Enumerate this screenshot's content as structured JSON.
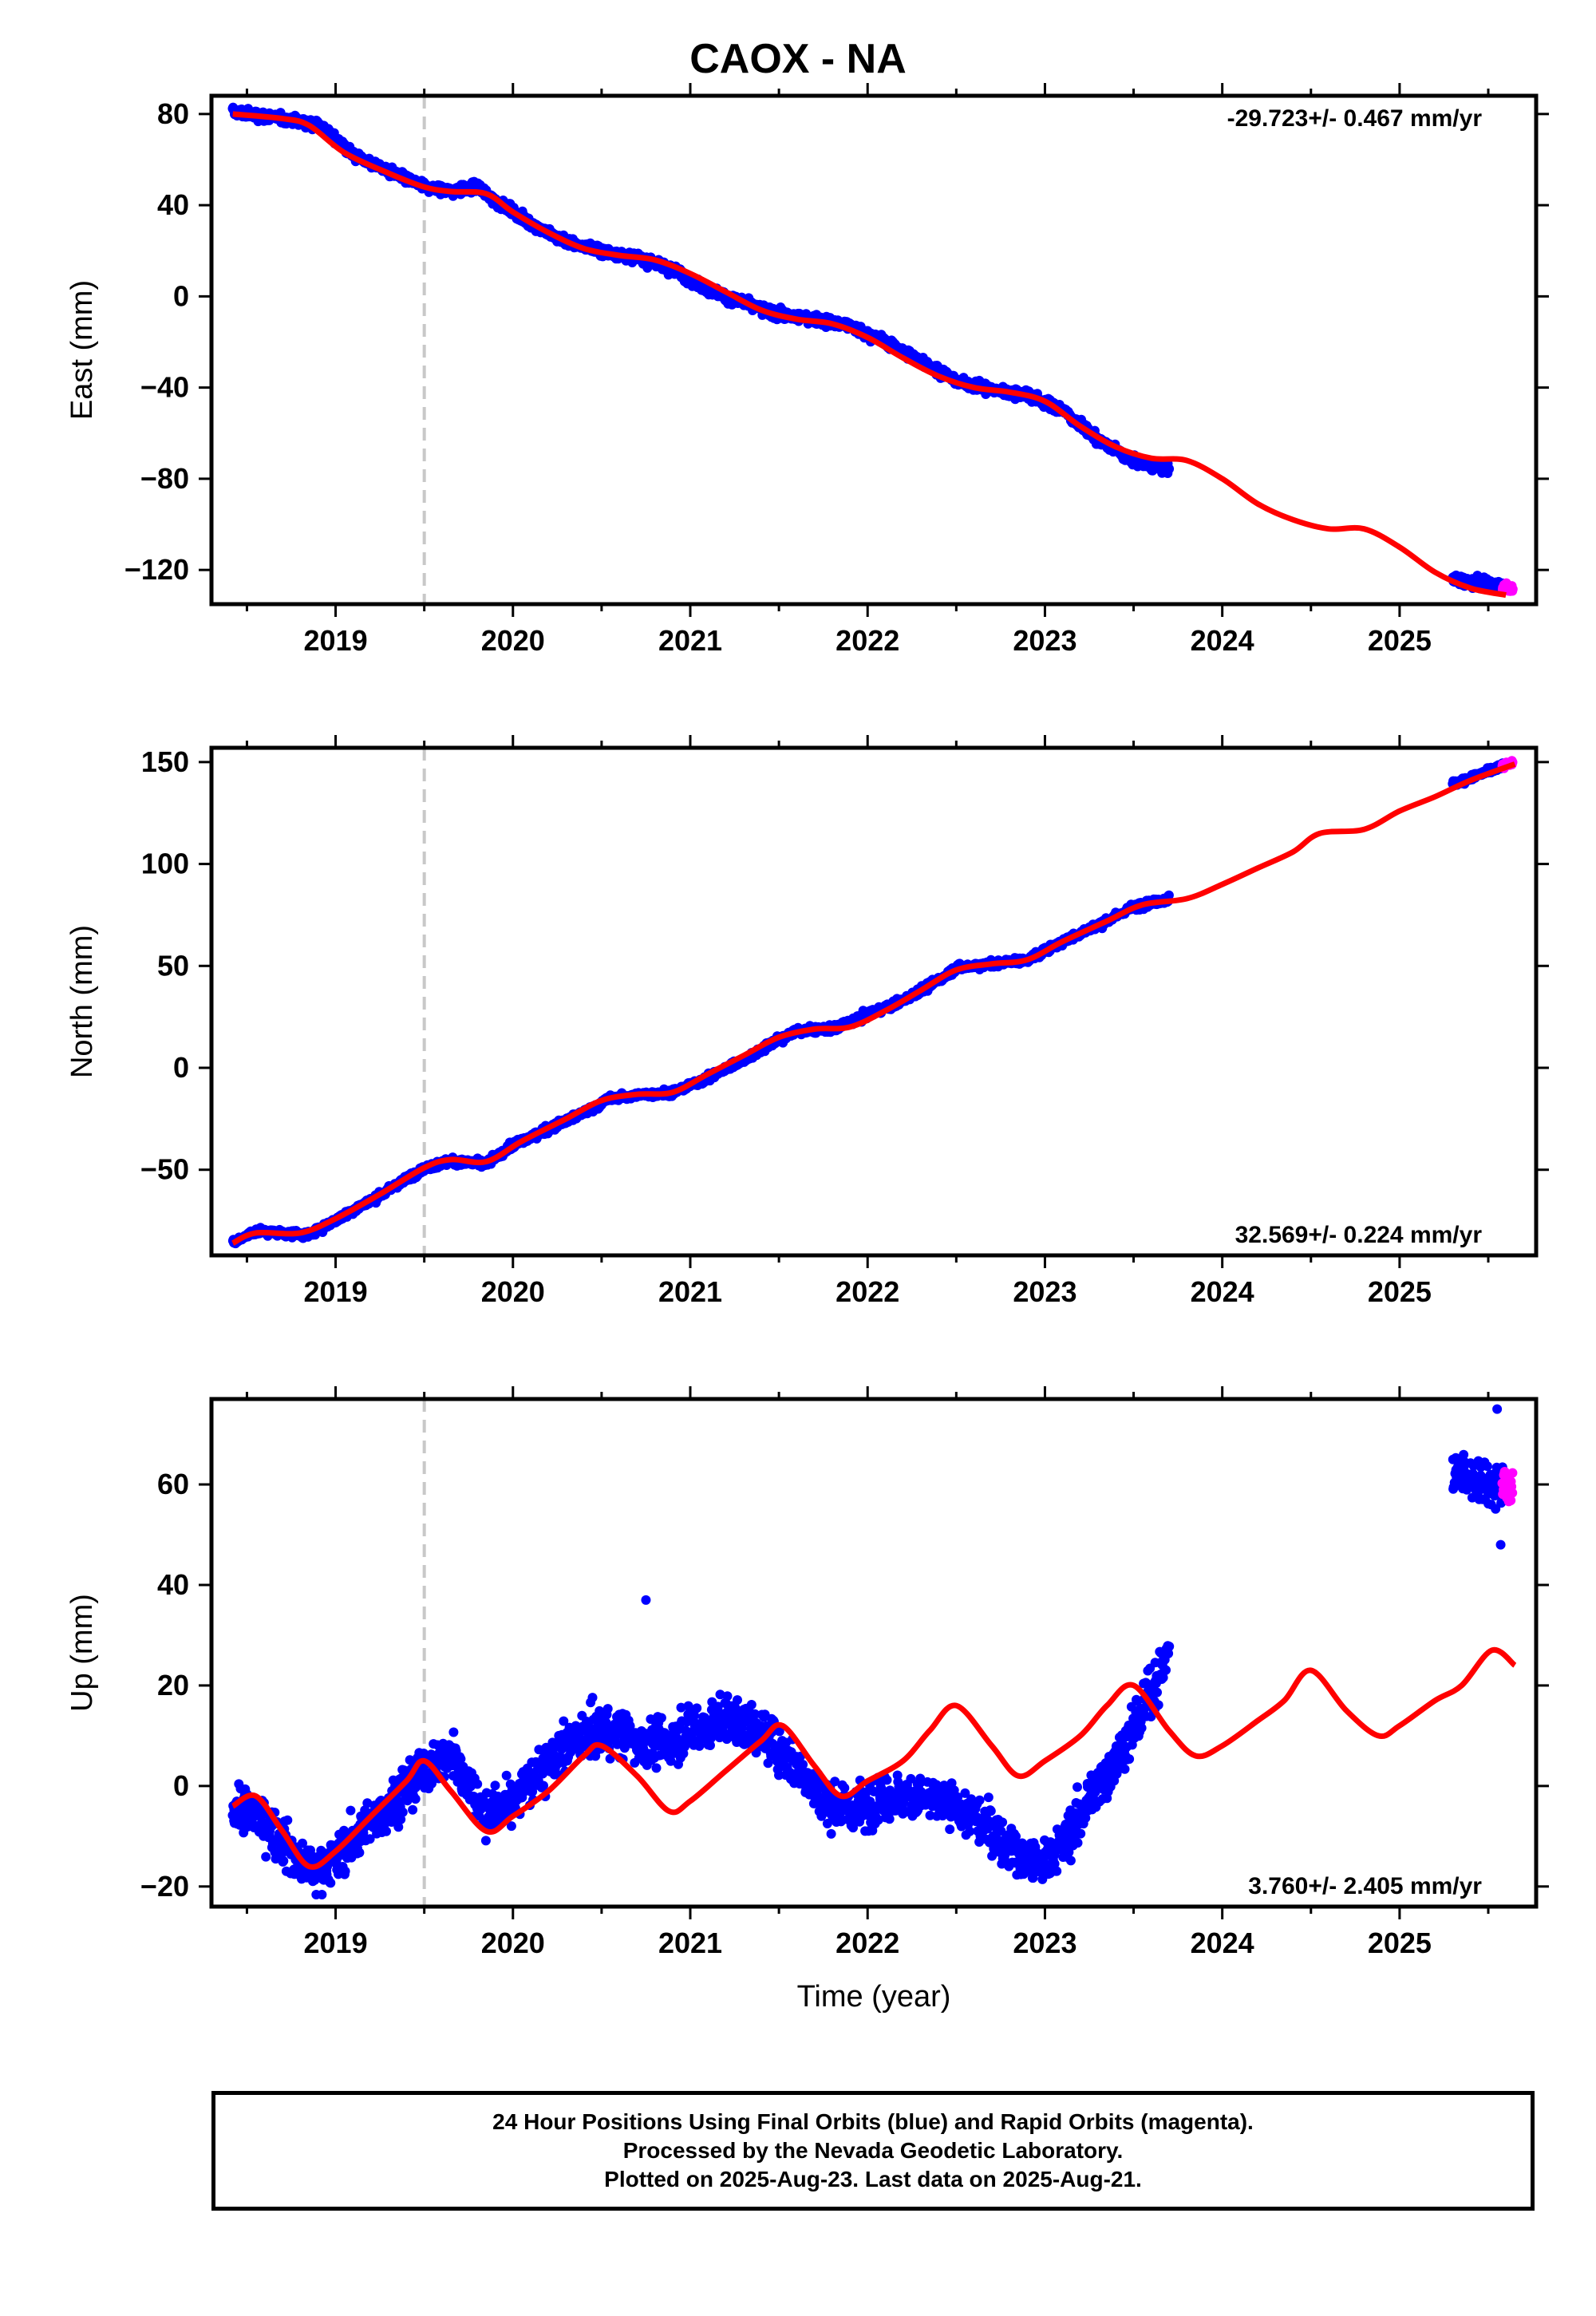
{
  "title": "CAOX - NA",
  "footer": {
    "line1": "24 Hour Positions Using Final Orbits (blue) and Rapid Orbits (magenta).",
    "line2": "Processed by the Nevada Geodetic Laboratory.",
    "line3": "Plotted on 2025-Aug-23. Last data on 2025-Aug-21."
  },
  "colors": {
    "final": "#0000ff",
    "rapid": "#ff00ff",
    "model": "#ff0000",
    "equipment_change": "#c8c8c8"
  },
  "chart_data": [
    {
      "type": "scatter",
      "ylabel": "East (mm)",
      "xlabel": "",
      "xlim": [
        2018.3,
        2025.77
      ],
      "ylim": [
        -135,
        88
      ],
      "yticks": [
        80,
        40,
        0,
        -40,
        -80,
        -120
      ],
      "xticks": [
        2019,
        2020,
        2021,
        2022,
        2023,
        2024,
        2025
      ],
      "rate_text": "-29.723+/- 0.467 mm/yr",
      "rate_position": "top-right",
      "equipment_change_x": 2019.5,
      "series": [
        {
          "kind": "final_points",
          "noise": 1.5,
          "segments": [
            {
              "start": 2018.42,
              "end": 2023.7
            },
            {
              "start": 2025.3,
              "end": 2025.58
            }
          ],
          "trend": [
            [
              2018.42,
              81
            ],
            [
              2018.7,
              78
            ],
            [
              2018.9,
              76
            ],
            [
              2019.1,
              62
            ],
            [
              2019.3,
              55
            ],
            [
              2019.5,
              48
            ],
            [
              2019.65,
              46
            ],
            [
              2019.8,
              48
            ],
            [
              2019.9,
              42
            ],
            [
              2020.1,
              32
            ],
            [
              2020.3,
              24
            ],
            [
              2020.5,
              20
            ],
            [
              2020.7,
              17
            ],
            [
              2020.9,
              12
            ],
            [
              2021.1,
              3
            ],
            [
              2021.3,
              -3
            ],
            [
              2021.5,
              -8
            ],
            [
              2021.7,
              -10
            ],
            [
              2021.9,
              -13
            ],
            [
              2022.1,
              -20
            ],
            [
              2022.3,
              -28
            ],
            [
              2022.5,
              -37
            ],
            [
              2022.7,
              -41
            ],
            [
              2022.9,
              -43
            ],
            [
              2023.1,
              -50
            ],
            [
              2023.3,
              -63
            ],
            [
              2023.5,
              -72
            ],
            [
              2023.7,
              -76
            ],
            [
              2025.3,
              -124
            ],
            [
              2025.58,
              -127
            ]
          ]
        },
        {
          "kind": "rapid_points",
          "noise": 1.2,
          "segments": [
            {
              "start": 2025.58,
              "end": 2025.64
            }
          ],
          "trend": [
            [
              2025.58,
              -127
            ],
            [
              2025.64,
              -128
            ]
          ]
        },
        {
          "kind": "model_line",
          "points": [
            [
              2018.42,
              80
            ],
            [
              2018.7,
              78
            ],
            [
              2018.85,
              75
            ],
            [
              2019.05,
              63
            ],
            [
              2019.3,
              54
            ],
            [
              2019.5,
              48
            ],
            [
              2019.65,
              46
            ],
            [
              2019.85,
              45
            ],
            [
              2020.0,
              37
            ],
            [
              2020.2,
              28
            ],
            [
              2020.4,
              21
            ],
            [
              2020.6,
              18
            ],
            [
              2020.8,
              16
            ],
            [
              2021.0,
              10
            ],
            [
              2021.2,
              2
            ],
            [
              2021.4,
              -6
            ],
            [
              2021.6,
              -10
            ],
            [
              2021.8,
              -12
            ],
            [
              2022.0,
              -18
            ],
            [
              2022.2,
              -27
            ],
            [
              2022.4,
              -35
            ],
            [
              2022.6,
              -40
            ],
            [
              2022.8,
              -42
            ],
            [
              2023.0,
              -46
            ],
            [
              2023.2,
              -57
            ],
            [
              2023.4,
              -66
            ],
            [
              2023.6,
              -71
            ],
            [
              2023.8,
              -72
            ],
            [
              2024.0,
              -80
            ],
            [
              2024.2,
              -91
            ],
            [
              2024.4,
              -98
            ],
            [
              2024.6,
              -102
            ],
            [
              2024.8,
              -102
            ],
            [
              2025.0,
              -110
            ],
            [
              2025.2,
              -121
            ],
            [
              2025.4,
              -128
            ],
            [
              2025.6,
              -131
            ]
          ]
        }
      ]
    },
    {
      "type": "scatter",
      "ylabel": "North (mm)",
      "xlabel": "",
      "xlim": [
        2018.3,
        2025.77
      ],
      "ylim": [
        -92,
        157
      ],
      "yticks": [
        150,
        100,
        50,
        0,
        -50
      ],
      "xticks": [
        2019,
        2020,
        2021,
        2022,
        2023,
        2024,
        2025
      ],
      "rate_text": "32.569+/- 0.224 mm/yr",
      "rate_position": "bottom-right",
      "equipment_change_x": 2019.5,
      "series": [
        {
          "kind": "final_points",
          "noise": 1.2,
          "segments": [
            {
              "start": 2018.42,
              "end": 2023.7
            },
            {
              "start": 2025.3,
              "end": 2025.58
            }
          ],
          "trend": [
            [
              2018.42,
              -86
            ],
            [
              2018.55,
              -80
            ],
            [
              2018.85,
              -82
            ],
            [
              2019.1,
              -70
            ],
            [
              2019.3,
              -60
            ],
            [
              2019.5,
              -49
            ],
            [
              2019.65,
              -46
            ],
            [
              2019.85,
              -47
            ],
            [
              2020.0,
              -38
            ],
            [
              2020.2,
              -30
            ],
            [
              2020.4,
              -22
            ],
            [
              2020.55,
              -15
            ],
            [
              2020.75,
              -13
            ],
            [
              2020.9,
              -12
            ],
            [
              2021.1,
              -5
            ],
            [
              2021.3,
              4
            ],
            [
              2021.5,
              14
            ],
            [
              2021.6,
              18
            ],
            [
              2021.8,
              19
            ],
            [
              2022.0,
              26
            ],
            [
              2022.2,
              33
            ],
            [
              2022.4,
              43
            ],
            [
              2022.5,
              49
            ],
            [
              2022.7,
              51
            ],
            [
              2022.9,
              53
            ],
            [
              2023.1,
              62
            ],
            [
              2023.3,
              70
            ],
            [
              2023.5,
              79
            ],
            [
              2023.7,
              83
            ],
            [
              2025.3,
              139
            ],
            [
              2025.58,
              148
            ]
          ]
        },
        {
          "kind": "rapid_points",
          "noise": 1.0,
          "segments": [
            {
              "start": 2025.58,
              "end": 2025.64
            }
          ],
          "trend": [
            [
              2025.58,
              148
            ],
            [
              2025.64,
              150
            ]
          ]
        },
        {
          "kind": "model_line",
          "points": [
            [
              2018.42,
              -86
            ],
            [
              2018.55,
              -81
            ],
            [
              2018.8,
              -81
            ],
            [
              2019.0,
              -74
            ],
            [
              2019.25,
              -62
            ],
            [
              2019.5,
              -49
            ],
            [
              2019.65,
              -45
            ],
            [
              2019.85,
              -46
            ],
            [
              2020.05,
              -36
            ],
            [
              2020.3,
              -25
            ],
            [
              2020.5,
              -16
            ],
            [
              2020.7,
              -13
            ],
            [
              2020.9,
              -12
            ],
            [
              2021.1,
              -3
            ],
            [
              2021.3,
              6
            ],
            [
              2021.5,
              15
            ],
            [
              2021.7,
              19
            ],
            [
              2021.9,
              20
            ],
            [
              2022.1,
              28
            ],
            [
              2022.3,
              38
            ],
            [
              2022.5,
              48
            ],
            [
              2022.7,
              51
            ],
            [
              2022.9,
              53
            ],
            [
              2023.1,
              62
            ],
            [
              2023.35,
              72
            ],
            [
              2023.55,
              80
            ],
            [
              2023.8,
              83
            ],
            [
              2024.0,
              90
            ],
            [
              2024.2,
              98
            ],
            [
              2024.4,
              106
            ],
            [
              2024.55,
              115
            ],
            [
              2024.8,
              117
            ],
            [
              2025.0,
              126
            ],
            [
              2025.2,
              133
            ],
            [
              2025.4,
              141
            ],
            [
              2025.65,
              149
            ]
          ]
        }
      ]
    },
    {
      "type": "scatter",
      "ylabel": "Up (mm)",
      "xlabel": "Time (year)",
      "xlim": [
        2018.3,
        2025.77
      ],
      "ylim": [
        -24,
        77
      ],
      "yticks": [
        60,
        40,
        20,
        0,
        -20
      ],
      "xticks": [
        2019,
        2020,
        2021,
        2022,
        2023,
        2024,
        2025
      ],
      "rate_text": "3.760+/- 2.405 mm/yr",
      "rate_position": "bottom-right",
      "equipment_change_x": 2019.5,
      "series": [
        {
          "kind": "final_points",
          "noise": 3.2,
          "segments": [
            {
              "start": 2018.42,
              "end": 2023.7
            },
            {
              "start": 2025.3,
              "end": 2025.58
            }
          ],
          "trend": [
            [
              2018.42,
              -4
            ],
            [
              2018.6,
              -7
            ],
            [
              2018.8,
              -15
            ],
            [
              2018.9,
              -17
            ],
            [
              2019.1,
              -11
            ],
            [
              2019.3,
              -4
            ],
            [
              2019.5,
              3
            ],
            [
              2019.65,
              6
            ],
            [
              2019.75,
              0
            ],
            [
              2019.85,
              -6
            ],
            [
              2020.0,
              -3
            ],
            [
              2020.2,
              5
            ],
            [
              2020.4,
              10
            ],
            [
              2020.55,
              11
            ],
            [
              2020.7,
              9
            ],
            [
              2020.85,
              8
            ],
            [
              2021.0,
              11
            ],
            [
              2021.2,
              13
            ],
            [
              2021.4,
              11
            ],
            [
              2021.55,
              6
            ],
            [
              2021.75,
              -3
            ],
            [
              2021.9,
              -5
            ],
            [
              2022.05,
              -3
            ],
            [
              2022.2,
              -2
            ],
            [
              2022.4,
              -3
            ],
            [
              2022.6,
              -6
            ],
            [
              2022.8,
              -12
            ],
            [
              2022.95,
              -16
            ],
            [
              2023.1,
              -12
            ],
            [
              2023.25,
              -3
            ],
            [
              2023.4,
              5
            ],
            [
              2023.55,
              15
            ],
            [
              2023.7,
              27
            ],
            [
              2025.3,
              62
            ],
            [
              2025.58,
              60
            ]
          ]
        },
        {
          "kind": "rapid_points",
          "noise": 3.0,
          "segments": [
            {
              "start": 2025.58,
              "end": 2025.64
            }
          ],
          "trend": [
            [
              2025.58,
              59
            ],
            [
              2025.64,
              60
            ]
          ]
        },
        {
          "kind": "outliers",
          "points": [
            [
              2020.75,
              37
            ],
            [
              2025.55,
              75
            ],
            [
              2025.57,
              48
            ]
          ]
        },
        {
          "kind": "model_line",
          "points": [
            [
              2018.42,
              -4
            ],
            [
              2018.55,
              -2
            ],
            [
              2018.7,
              -9
            ],
            [
              2018.85,
              -16
            ],
            [
              2019.0,
              -13
            ],
            [
              2019.2,
              -6
            ],
            [
              2019.4,
              1
            ],
            [
              2019.5,
              5
            ],
            [
              2019.65,
              -1
            ],
            [
              2019.85,
              -9
            ],
            [
              2020.0,
              -6
            ],
            [
              2020.2,
              -1
            ],
            [
              2020.4,
              6
            ],
            [
              2020.5,
              8
            ],
            [
              2020.7,
              2
            ],
            [
              2020.88,
              -5
            ],
            [
              2021.0,
              -3
            ],
            [
              2021.2,
              3
            ],
            [
              2021.4,
              9
            ],
            [
              2021.52,
              12
            ],
            [
              2021.7,
              4
            ],
            [
              2021.85,
              -2
            ],
            [
              2022.0,
              1
            ],
            [
              2022.2,
              5
            ],
            [
              2022.35,
              11
            ],
            [
              2022.5,
              16
            ],
            [
              2022.7,
              8
            ],
            [
              2022.85,
              2
            ],
            [
              2023.0,
              5
            ],
            [
              2023.2,
              10
            ],
            [
              2023.35,
              16
            ],
            [
              2023.5,
              20
            ],
            [
              2023.7,
              11
            ],
            [
              2023.85,
              6
            ],
            [
              2024.0,
              8
            ],
            [
              2024.2,
              13
            ],
            [
              2024.35,
              17
            ],
            [
              2024.5,
              23
            ],
            [
              2024.7,
              15
            ],
            [
              2024.88,
              10
            ],
            [
              2025.0,
              12
            ],
            [
              2025.2,
              17
            ],
            [
              2025.35,
              20
            ],
            [
              2025.52,
              27
            ],
            [
              2025.65,
              24
            ]
          ]
        }
      ]
    }
  ]
}
